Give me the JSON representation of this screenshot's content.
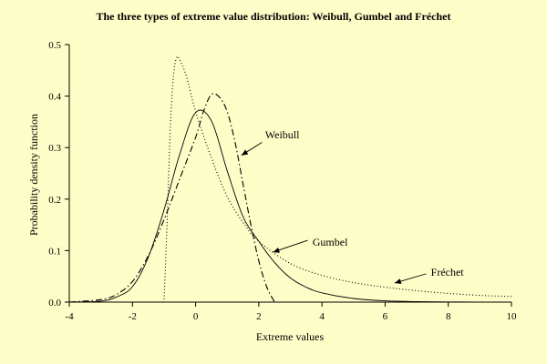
{
  "chart_data": {
    "type": "line",
    "title": "The three types of extreme value distribution: Weibull, Gumbel and Fréchet",
    "xlabel": "Extreme values",
    "ylabel": "Probability density function",
    "xlim": [
      -4,
      10
    ],
    "ylim": [
      0,
      0.5
    ],
    "xticks": [
      -4,
      -2,
      0,
      2,
      4,
      6,
      8,
      10
    ],
    "yticks": [
      0.0,
      0.1,
      0.2,
      0.3,
      0.4,
      0.5
    ],
    "xtick_labels": [
      "-4",
      "-2",
      "0",
      "2",
      "4",
      "6",
      "8",
      "10"
    ],
    "ytick_labels": [
      "0.0",
      "0.1",
      "0.2",
      "0.3",
      "0.4",
      "0.5"
    ],
    "grid": false,
    "legend": "none",
    "series": [
      {
        "name": "Weibull",
        "style": "dashdot",
        "color": "#000000",
        "points": [
          [
            -4,
            0.0
          ],
          [
            -3,
            0.005
          ],
          [
            -2.5,
            0.015
          ],
          [
            -2,
            0.04
          ],
          [
            -1.5,
            0.09
          ],
          [
            -1,
            0.16
          ],
          [
            -0.5,
            0.24
          ],
          [
            0,
            0.32
          ],
          [
            0.25,
            0.37
          ],
          [
            0.5,
            0.403
          ],
          [
            0.75,
            0.398
          ],
          [
            1,
            0.37
          ],
          [
            1.25,
            0.31
          ],
          [
            1.5,
            0.23
          ],
          [
            1.75,
            0.15
          ],
          [
            2,
            0.08
          ],
          [
            2.25,
            0.03
          ],
          [
            2.5,
            0.0
          ]
        ]
      },
      {
        "name": "Gumbel",
        "style": "solid",
        "color": "#000000",
        "points": [
          [
            -4,
            0.0
          ],
          [
            -3,
            0.002
          ],
          [
            -2.5,
            0.01
          ],
          [
            -2,
            0.03
          ],
          [
            -1.5,
            0.087
          ],
          [
            -1,
            0.179
          ],
          [
            -0.5,
            0.288
          ],
          [
            0,
            0.368
          ],
          [
            0.5,
            0.352
          ],
          [
            1,
            0.255
          ],
          [
            1.5,
            0.166
          ],
          [
            2,
            0.118
          ],
          [
            2.5,
            0.077
          ],
          [
            3,
            0.047
          ],
          [
            3.5,
            0.029
          ],
          [
            4,
            0.018
          ],
          [
            5,
            0.007
          ],
          [
            6,
            0.0025
          ],
          [
            7,
            0.001
          ],
          [
            8,
            0.0003
          ],
          [
            10,
            0.0
          ]
        ]
      },
      {
        "name": "Fréchet",
        "style": "dotted",
        "color": "#000000",
        "points": [
          [
            -1.05,
            0.0
          ],
          [
            -1,
            0.005
          ],
          [
            -0.9,
            0.16
          ],
          [
            -0.8,
            0.34
          ],
          [
            -0.7,
            0.44
          ],
          [
            -0.6,
            0.475
          ],
          [
            -0.5,
            0.47
          ],
          [
            -0.3,
            0.44
          ],
          [
            0,
            0.37
          ],
          [
            0.5,
            0.28
          ],
          [
            1,
            0.205
          ],
          [
            1.5,
            0.155
          ],
          [
            2,
            0.118
          ],
          [
            3,
            0.075
          ],
          [
            4,
            0.052
          ],
          [
            5,
            0.038
          ],
          [
            6,
            0.029
          ],
          [
            7,
            0.022
          ],
          [
            8,
            0.017
          ],
          [
            9,
            0.013
          ],
          [
            10,
            0.011
          ]
        ]
      }
    ],
    "annotations": [
      {
        "text": "Weibull",
        "x": 2.2,
        "y": 0.325,
        "arrow_from": [
          2.1,
          0.31
        ],
        "arrow_to": [
          1.45,
          0.285
        ]
      },
      {
        "text": "Gumbel",
        "x": 3.7,
        "y": 0.117,
        "arrow_from": [
          3.55,
          0.12
        ],
        "arrow_to": [
          2.45,
          0.097
        ]
      },
      {
        "text": "Fréchet",
        "x": 7.45,
        "y": 0.058,
        "arrow_from": [
          7.3,
          0.055
        ],
        "arrow_to": [
          6.3,
          0.037
        ]
      }
    ]
  }
}
